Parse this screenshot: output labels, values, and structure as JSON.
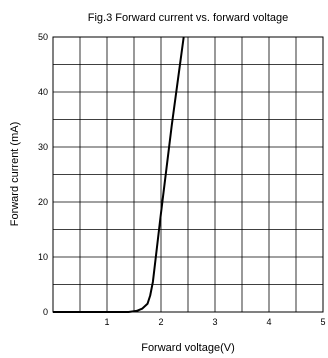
{
  "chart_data": {
    "type": "line",
    "title": "Fig.3 Forward current vs. forward voltage",
    "xlabel": "Forward voltage(V)",
    "ylabel": "Forward current (mA)",
    "xlim": [
      0,
      5
    ],
    "ylim": [
      0,
      50
    ],
    "x_ticks": [
      1,
      2,
      3,
      4,
      5
    ],
    "y_ticks": [
      0,
      10,
      20,
      30,
      40,
      50
    ],
    "x_minor_step": 0.5,
    "y_minor_step": 5,
    "grid": true,
    "legend": "none",
    "line_color": "#000000",
    "series": [
      {
        "x": [
          0,
          0.5,
          1.0,
          1.4,
          1.55,
          1.65,
          1.75,
          1.8,
          1.85,
          2.0,
          2.2,
          2.42
        ],
        "y": [
          0,
          0,
          0,
          0,
          0.2,
          0.6,
          1.5,
          3.0,
          5.5,
          18,
          34,
          50
        ]
      }
    ]
  }
}
